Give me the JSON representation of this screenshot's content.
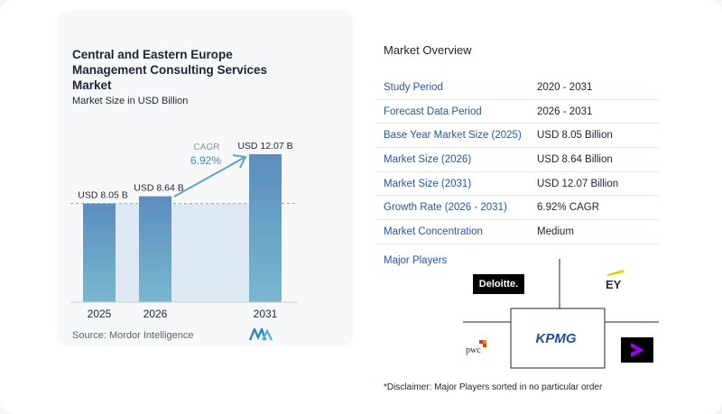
{
  "chart_data": {
    "type": "bar",
    "title": "Central and Eastern Europe Management Consulting Services Market",
    "subtitle": "Market Size in USD Billion",
    "categories": [
      "2025",
      "2026",
      "2031"
    ],
    "values": [
      8.05,
      8.64,
      12.07
    ],
    "data_labels": [
      "USD 8.05 B",
      "USD 8.64 B",
      "USD 12.07 B"
    ],
    "cagr_label": "CAGR",
    "cagr_value": "6.92%",
    "bar_color": "#5f8fbf",
    "grid": false
  },
  "source": "Source:  Mordor Intelligence",
  "overview": {
    "title": "Market Overview",
    "rows": [
      {
        "key": "Study Period",
        "value": "2020 - 2031"
      },
      {
        "key": "Forecast Data Period",
        "value": "2026 - 2031"
      },
      {
        "key": "Base Year Market Size (2025)",
        "value": "USD 8.05 Billion"
      },
      {
        "key": "Market Size (2026)",
        "value": "USD 8.64 Billion"
      },
      {
        "key": "Market Size (2031)",
        "value": "USD 12.07 Billion"
      },
      {
        "key": "Growth Rate (2026 - 2031)",
        "value": "6.92% CAGR"
      },
      {
        "key": "Market Concentration",
        "value": "Medium"
      }
    ]
  },
  "players": {
    "title": "Major Players",
    "logos": [
      "Deloitte.",
      "EY",
      "KPMG",
      "pwc",
      "accenture"
    ],
    "disclaimer": "*Disclaimer: Major Players sorted in no particular order"
  },
  "colors": {
    "accent": "#2a55a3",
    "bar": "#5f8fbf"
  }
}
